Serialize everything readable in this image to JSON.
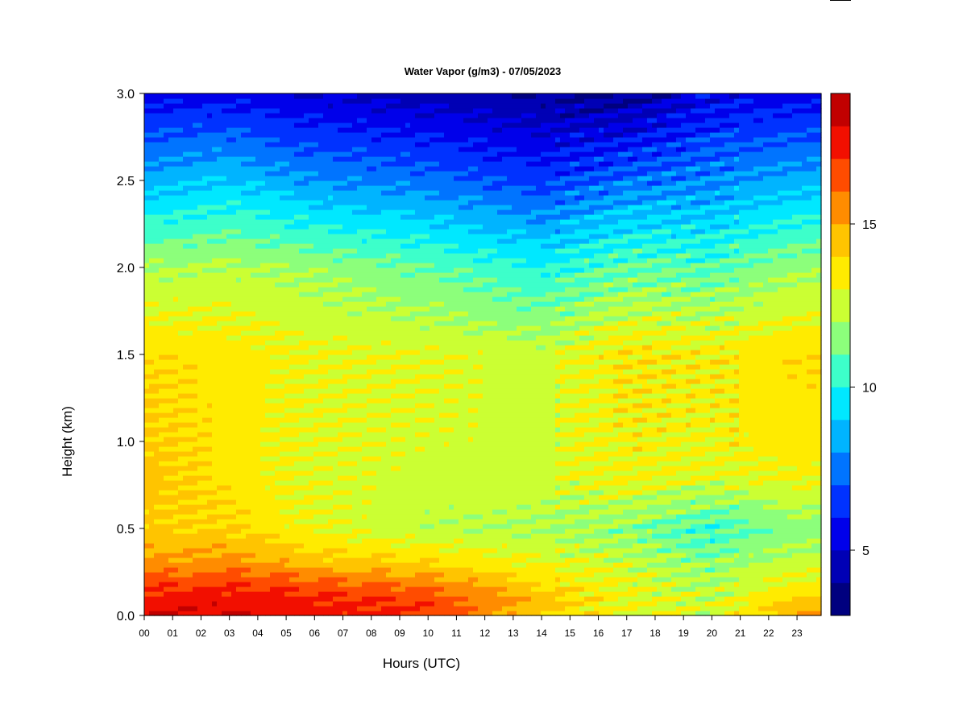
{
  "chart_data": {
    "type": "heatmap",
    "title": "Water Vapor (g/m3) - 07/05/2023",
    "xlabel": "Hours (UTC)",
    "ylabel": "Height (km)",
    "x_tick_labels": [
      "00",
      "01",
      "02",
      "03",
      "04",
      "05",
      "06",
      "07",
      "08",
      "09",
      "10",
      "11",
      "12",
      "13",
      "14",
      "15",
      "16",
      "17",
      "18",
      "19",
      "20",
      "21",
      "22",
      "23"
    ],
    "x_range": [
      0,
      23.85
    ],
    "y_ticks": [
      "0.0",
      "0.5",
      "1.0",
      "1.5",
      "2.0",
      "2.5",
      "3.0"
    ],
    "y_range": [
      0,
      3.0
    ],
    "colorbar": {
      "levels": [
        3,
        4,
        5,
        6,
        7,
        8,
        9,
        10,
        11,
        12,
        13,
        14,
        15,
        16,
        17,
        18,
        19
      ],
      "colors": [
        "#00007f",
        "#0000b5",
        "#0000ea",
        "#0032ff",
        "#0074ff",
        "#00b4ff",
        "#00e8ff",
        "#3dffca",
        "#8cff7b",
        "#cbff33",
        "#ffeb00",
        "#ffc400",
        "#ff8c00",
        "#ff4c00",
        "#f20f00",
        "#c10000",
        "#7f0000"
      ],
      "tick_labels": [
        "5",
        "10",
        "15"
      ],
      "tick_values": [
        5,
        10,
        15
      ]
    },
    "series": [
      {
        "hour": 0,
        "profile_km": [
          0,
          0.1,
          0.2,
          0.3,
          0.5,
          0.8,
          1.0,
          1.5,
          2.0,
          2.5,
          3.0
        ],
        "water_vapor": [
          18,
          17.5,
          16.5,
          15.2,
          14.2,
          14.5,
          14.3,
          13.8,
          12.0,
          8.5,
          5.5
        ]
      },
      {
        "hour": 3,
        "profile_km": [
          0,
          0.1,
          0.2,
          0.3,
          0.5,
          0.8,
          1.0,
          1.5,
          2.0,
          2.5,
          3.0
        ],
        "water_vapor": [
          18,
          17.5,
          16.8,
          15.5,
          14.0,
          13.6,
          13.5,
          13.6,
          12.2,
          9.0,
          5.5
        ]
      },
      {
        "hour": 6,
        "profile_km": [
          0,
          0.1,
          0.2,
          0.3,
          0.5,
          0.8,
          1.0,
          1.5,
          2.0,
          2.5,
          3.0
        ],
        "water_vapor": [
          17.5,
          17.2,
          16.2,
          14.5,
          13.0,
          12.8,
          12.9,
          13.0,
          11.8,
          8.0,
          5.0
        ]
      },
      {
        "hour": 10,
        "profile_km": [
          0,
          0.1,
          0.2,
          0.3,
          0.5,
          0.8,
          1.0,
          1.5,
          2.0,
          2.5,
          3.0
        ],
        "water_vapor": [
          17.0,
          16.8,
          15.5,
          14.0,
          12.2,
          12.6,
          12.7,
          12.9,
          11.0,
          7.5,
          4.5
        ]
      },
      {
        "hour": 14,
        "profile_km": [
          0,
          0.1,
          0.2,
          0.3,
          0.5,
          0.8,
          1.0,
          1.5,
          2.0,
          2.5,
          3.0
        ],
        "water_vapor": [
          14.0,
          14.5,
          13.8,
          13.0,
          12.0,
          12.6,
          12.6,
          12.5,
          10.0,
          6.5,
          4.0
        ]
      },
      {
        "hour": 17,
        "profile_km": [
          0,
          0.1,
          0.2,
          0.3,
          0.5,
          0.8,
          1.0,
          1.5,
          2.0,
          2.5,
          3.0
        ],
        "water_vapor": [
          13.0,
          13.0,
          12.8,
          12.5,
          11.5,
          13.2,
          13.3,
          13.6,
          11.0,
          7.5,
          3.8
        ]
      },
      {
        "hour": 20,
        "profile_km": [
          0,
          0.1,
          0.2,
          0.3,
          0.5,
          0.8,
          1.0,
          1.5,
          2.0,
          2.5,
          3.0
        ],
        "water_vapor": [
          12.6,
          12.4,
          12.0,
          11.5,
          10.3,
          12.8,
          13.2,
          13.4,
          10.8,
          7.8,
          5.5
        ]
      },
      {
        "hour": 23,
        "profile_km": [
          0,
          0.1,
          0.2,
          0.3,
          0.5,
          0.8,
          1.0,
          1.5,
          2.0,
          2.5,
          3.0
        ],
        "water_vapor": [
          15.0,
          14.2,
          13.2,
          12.5,
          11.5,
          13.2,
          13.5,
          13.8,
          11.8,
          8.5,
          5.5
        ]
      }
    ]
  }
}
